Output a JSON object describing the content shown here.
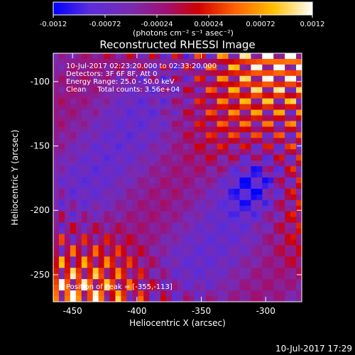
{
  "chart_data": {
    "type": "heatmap",
    "title": "Reconstructed RHESSI Image",
    "xlabel": "Heliocentric X (arcsec)",
    "ylabel": "Heliocentric Y (arcsec)",
    "xlim": [
      -465,
      -272
    ],
    "ylim": [
      -271,
      -78
    ],
    "x_ticks": [
      "-450",
      "-400",
      "-350",
      "-300"
    ],
    "x_tick_values": [
      -450,
      -400,
      -350,
      -300
    ],
    "y_ticks": [
      "-100",
      "-150",
      "-200",
      "-250"
    ],
    "y_tick_values": [
      -100,
      -150,
      -200,
      -250
    ],
    "colorbar": {
      "min": -0.0012,
      "max": 0.0012,
      "ticks": [
        "-0.0012",
        "-0.00072",
        "-0.00024",
        "0.00024",
        "0.00072",
        "0.0012"
      ],
      "tick_values": [
        -0.0012,
        -0.00072,
        -0.00024,
        0.00024,
        0.00072,
        0.0012
      ],
      "unit_label": "(photons cm⁻² s⁻¹ asec⁻²)",
      "colormap": [
        "#0000ff",
        "#5a2ddc",
        "#7a2ab0",
        "#a01070",
        "#d00000",
        "#ff6000",
        "#ffc000",
        "#ffffff"
      ]
    },
    "annotations": {
      "time_range": "10-Jul-2017 02:23:20.000 to 02:33:20.000",
      "detectors": "Detectors: 3F 6F 8F, Att 0",
      "energy_range": "Energy Range: 25.0 - 50.0 keV",
      "clean": "Clean     Total counts: 3.56e+04",
      "peak_position": "Position of Peak = [-355,-113]"
    },
    "peak": {
      "x": -355,
      "y": -113
    },
    "grid": false
  },
  "footer_timestamp": "10-Jul-2017 17:29"
}
